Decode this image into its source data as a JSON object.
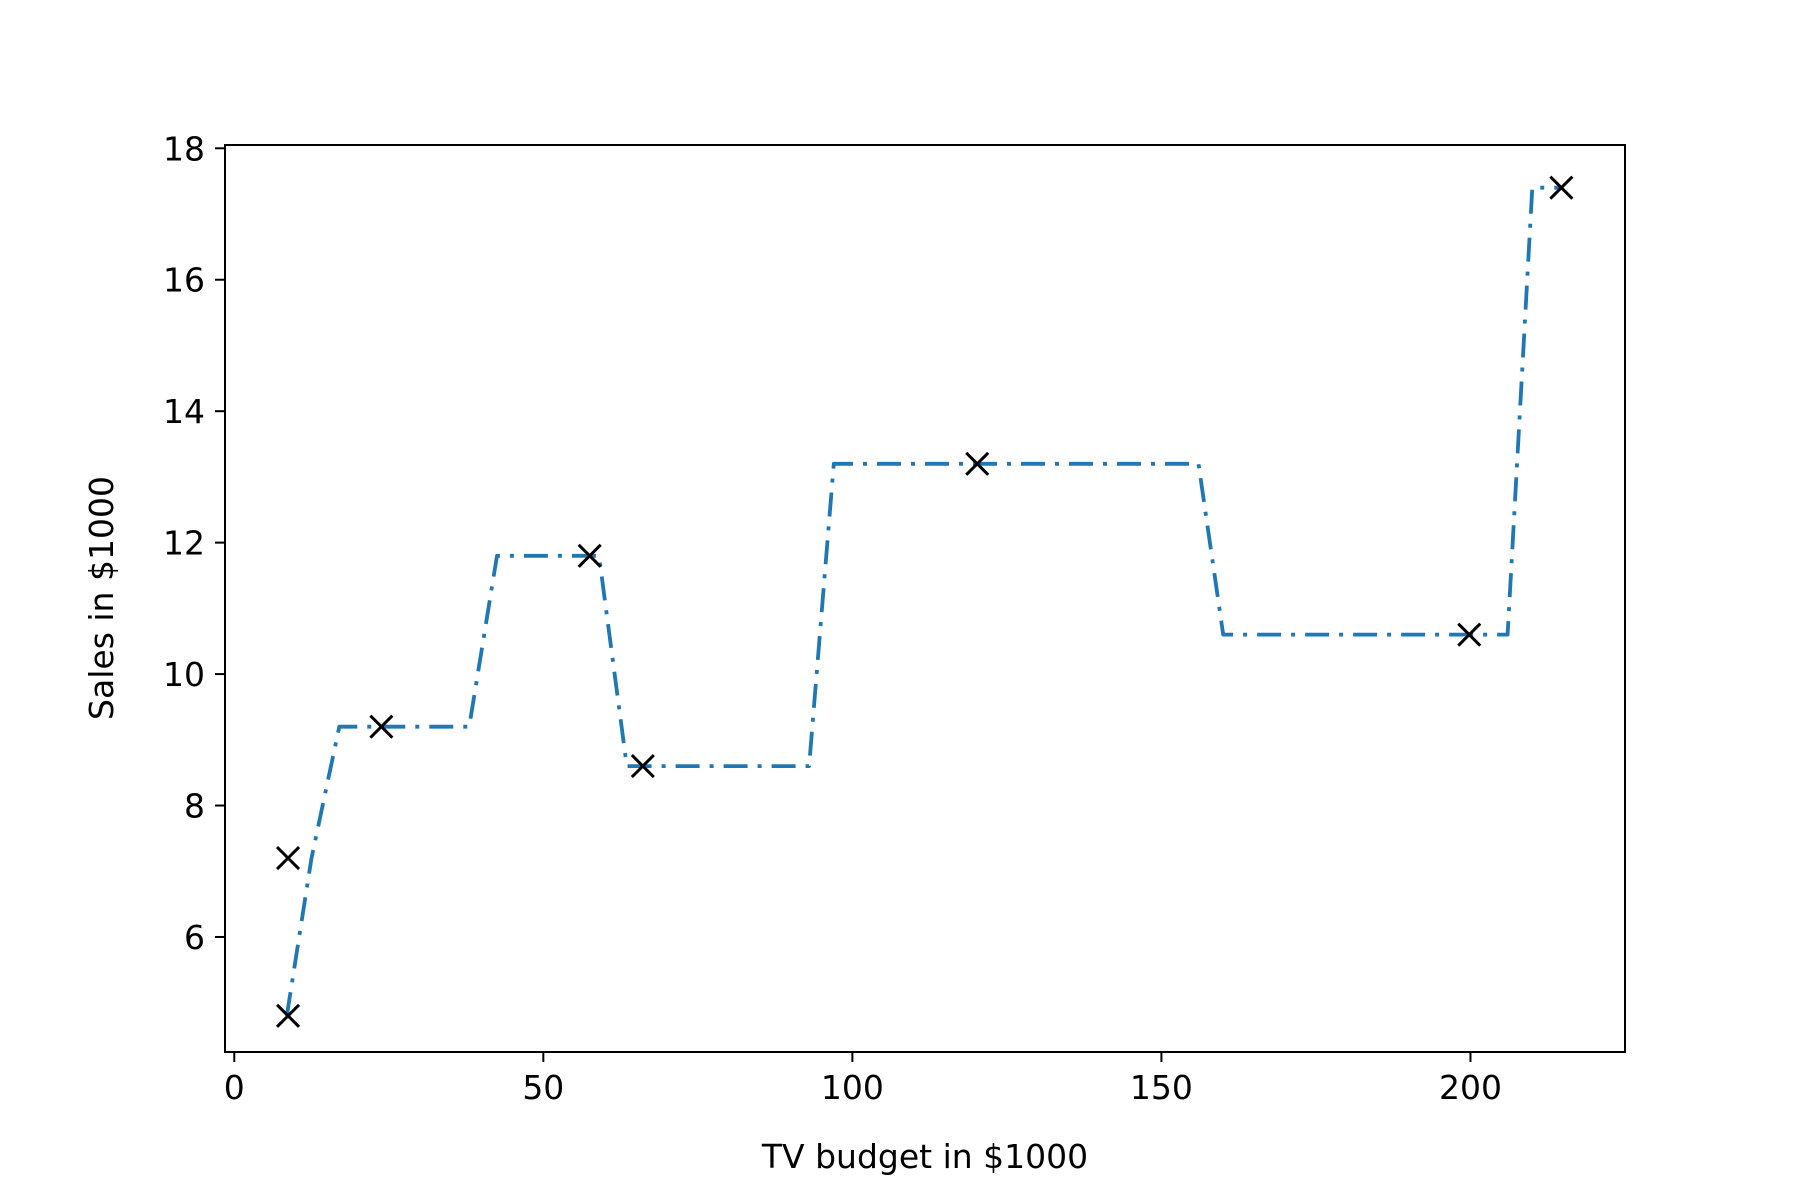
{
  "chart_data": {
    "type": "line",
    "title": "",
    "xlabel": "TV budget in $1000",
    "ylabel": "Sales in $1000",
    "xlim": [
      -1.5,
      225
    ],
    "ylim": [
      4.25,
      18.05
    ],
    "xticks": [
      0,
      50,
      100,
      150,
      200
    ],
    "yticks": [
      6,
      8,
      10,
      12,
      14,
      16,
      18
    ],
    "grid": false,
    "legend": "none",
    "colors": {
      "line": "#1f77b4",
      "markers": "#000000",
      "axes": "#000000",
      "background": "#ffffff"
    },
    "series": [
      {
        "type": "line",
        "linestyle": "dash-dot",
        "x": [
          8.5,
          12.5,
          17,
          38,
          42.5,
          59,
          63.5,
          93,
          97,
          156,
          160,
          206,
          210,
          215
        ],
        "y": [
          4.8,
          7.2,
          9.2,
          9.2,
          11.8,
          11.8,
          8.6,
          8.6,
          13.2,
          13.2,
          10.6,
          10.6,
          17.4,
          17.4
        ]
      },
      {
        "type": "scatter",
        "marker": "x",
        "x": [
          8.7,
          8.7,
          23.8,
          57.5,
          66.1,
          120.2,
          199.8,
          214.7
        ],
        "y": [
          4.8,
          7.2,
          9.2,
          11.8,
          8.6,
          13.2,
          10.6,
          17.4
        ]
      }
    ]
  }
}
